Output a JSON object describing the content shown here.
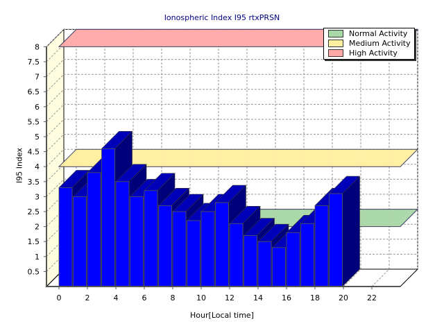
{
  "chart_data": {
    "type": "bar",
    "title": "Ionospheric Index I95 rtxPRSN",
    "xlabel": "Hour[Local time]",
    "ylabel": "I95 Index",
    "x": [
      0,
      1,
      2,
      3,
      4,
      5,
      6,
      7,
      8,
      9,
      10,
      11,
      12,
      13,
      14,
      15,
      16,
      17,
      18,
      19
    ],
    "values": [
      3.3,
      3.0,
      3.8,
      4.6,
      3.5,
      3.0,
      3.2,
      2.7,
      2.5,
      2.2,
      2.5,
      2.8,
      2.1,
      1.7,
      1.5,
      1.3,
      1.8,
      2.1,
      2.7,
      3.1
    ],
    "ylim": [
      0,
      8
    ],
    "xlim": [
      0,
      24
    ],
    "yticks": [
      "0.5",
      "1",
      "1.5",
      "2",
      "2.5",
      "3",
      "3.5",
      "4",
      "4.5",
      "5",
      "5.5",
      "6",
      "6.5",
      "7",
      "7.5",
      "8"
    ],
    "xticks": [
      "0",
      "2",
      "4",
      "6",
      "8",
      "10",
      "12",
      "14",
      "16",
      "18",
      "20",
      "22"
    ],
    "bar_color": "#0000ff",
    "threshold_bands": [
      {
        "name": "Normal Activity",
        "value": 2,
        "color": "#a8d8a8"
      },
      {
        "name": "Medium Activity",
        "value": 4,
        "color": "#fff0a0"
      },
      {
        "name": "High Activity",
        "value": 8,
        "color": "#ffa8a8"
      }
    ],
    "legend_placement": "top-right",
    "grid": true
  }
}
